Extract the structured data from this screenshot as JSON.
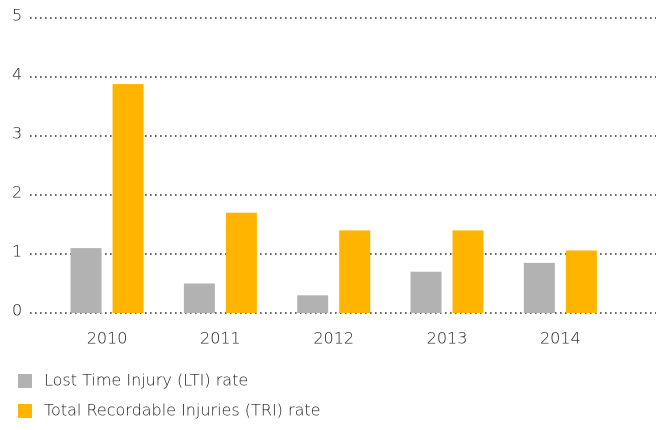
{
  "chart_data": {
    "type": "bar",
    "categories": [
      "2010",
      "2011",
      "2012",
      "2013",
      "2014"
    ],
    "series": [
      {
        "name": "Lost Time Injury (LTI) rate",
        "color": "#b2b2b2",
        "values": [
          1.1,
          0.5,
          0.3,
          0.7,
          0.85
        ]
      },
      {
        "name": "Total Recordable Injuries (TRI) rate",
        "color": "#ffb400",
        "values": [
          3.88,
          1.7,
          1.4,
          1.4,
          1.06
        ]
      }
    ],
    "ylim": [
      0,
      5
    ],
    "yticks": [
      0,
      1,
      2,
      3,
      4,
      5
    ],
    "grid": true,
    "legend": "bottom"
  }
}
